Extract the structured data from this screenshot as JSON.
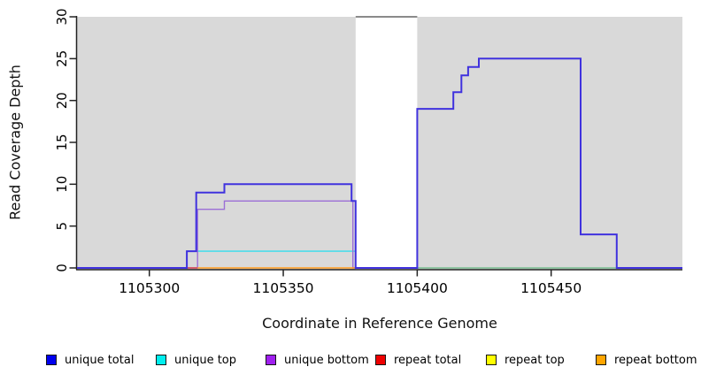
{
  "chart_data": {
    "type": "line",
    "subtype": "step-coverage",
    "title": "",
    "xlabel": "Coordinate in Reference Genome",
    "ylabel": "Read Coverage Depth",
    "xlim": [
      1105273,
      1105499
    ],
    "ylim": [
      0,
      30
    ],
    "xticks": [
      1105300,
      1105350,
      1105400,
      1105450
    ],
    "yticks": [
      0,
      5,
      10,
      15,
      20,
      25,
      30
    ],
    "grid": false,
    "background": "#ffffff",
    "region_color": "#d9d9d9",
    "shaded_regions": [
      {
        "x0": 1105273,
        "x1": 1105377
      },
      {
        "x0": 1105400,
        "x1": 1105499
      }
    ],
    "top_gap_line": {
      "x0": 1105377,
      "x1": 1105400,
      "y": 30,
      "color": "#8a8a8a"
    },
    "series": [
      {
        "name": "unique top",
        "color": "#33DDEE",
        "width": 1.4,
        "points": [
          [
            1105273,
            0
          ],
          [
            1105314,
            0
          ],
          [
            1105314,
            2
          ],
          [
            1105377,
            2
          ],
          [
            1105377,
            0
          ],
          [
            1105499,
            0
          ]
        ]
      },
      {
        "name": "unique bottom",
        "color": "#9B6FD6",
        "width": 1.4,
        "points": [
          [
            1105273,
            0
          ],
          [
            1105318,
            0
          ],
          [
            1105318,
            7
          ],
          [
            1105328,
            7
          ],
          [
            1105328,
            8
          ],
          [
            1105376,
            8
          ],
          [
            1105376,
            0
          ],
          [
            1105499,
            0
          ]
        ]
      },
      {
        "name": "repeat total",
        "color": "#E04040",
        "width": 1.4,
        "points": [
          [
            1105313.5,
            0
          ],
          [
            1105318,
            0
          ]
        ]
      },
      {
        "name": "repeat top",
        "color": "#FFFF00",
        "width": 1.4,
        "points": []
      },
      {
        "name": "repeat bottom",
        "color": "#FF9C1E",
        "width": 1.6,
        "points": [
          [
            1105318,
            0
          ],
          [
            1105377,
            0
          ]
        ]
      },
      {
        "name": "baseline-green-segment",
        "color": "#8FCF8F",
        "width": 1.4,
        "points": [
          [
            1105400,
            0
          ],
          [
            1105474.5,
            0
          ]
        ]
      },
      {
        "name": "unique total",
        "color": "#4032DE",
        "width": 2,
        "points": [
          [
            1105273,
            0
          ],
          [
            1105314,
            0
          ],
          [
            1105314,
            2
          ],
          [
            1105317.5,
            2
          ],
          [
            1105317.5,
            9
          ],
          [
            1105328,
            9
          ],
          [
            1105328,
            10
          ],
          [
            1105375.5,
            10
          ],
          [
            1105375.5,
            8
          ],
          [
            1105377,
            8
          ],
          [
            1105377,
            0
          ],
          [
            1105400,
            0
          ],
          [
            1105400,
            19
          ],
          [
            1105413.5,
            19
          ],
          [
            1105413.5,
            21
          ],
          [
            1105416.5,
            21
          ],
          [
            1105416.5,
            23
          ],
          [
            1105419,
            23
          ],
          [
            1105419,
            24
          ],
          [
            1105423,
            24
          ],
          [
            1105423,
            25
          ],
          [
            1105461,
            25
          ],
          [
            1105461,
            4
          ],
          [
            1105474.5,
            4
          ],
          [
            1105474.5,
            0
          ],
          [
            1105499,
            0
          ]
        ]
      }
    ],
    "legend_position": "bottom"
  },
  "legend": {
    "items": [
      {
        "label": "unique total",
        "color": "#0000EE"
      },
      {
        "label": "unique top",
        "color": "#00EEEE"
      },
      {
        "label": "unique bottom",
        "color": "#A020F0"
      },
      {
        "label": "repeat total",
        "color": "#EE0000"
      },
      {
        "label": "repeat top",
        "color": "#FFFF00"
      },
      {
        "label": "repeat bottom",
        "color": "#FFA500"
      }
    ]
  }
}
